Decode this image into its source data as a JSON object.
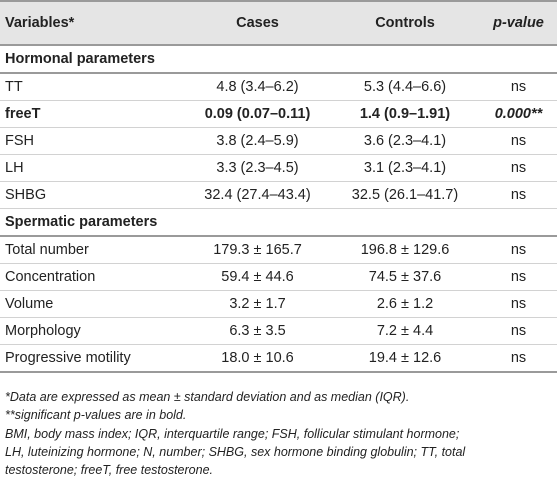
{
  "table": {
    "headers": [
      "Variables*",
      "Cases",
      "Controls",
      "p-value"
    ],
    "rows": [
      {
        "type": "section",
        "cells": [
          "Hormonal parameters",
          "",
          "",
          ""
        ]
      },
      {
        "type": "normal",
        "cells": [
          "TT",
          "4.8 (3.4–6.2)",
          "5.3 (4.4–6.6)",
          "ns"
        ]
      },
      {
        "type": "bold",
        "cells": [
          "freeT",
          "0.09 (0.07–0.11)",
          "1.4 (0.9–1.91)",
          "0.000**"
        ]
      },
      {
        "type": "normal",
        "cells": [
          "FSH",
          "3.8 (2.4–5.9)",
          "3.6 (2.3–4.1)",
          "ns"
        ]
      },
      {
        "type": "normal",
        "cells": [
          "LH",
          "3.3 (2.3–4.5)",
          "3.1 (2.3–4.1)",
          "ns"
        ]
      },
      {
        "type": "normal",
        "cells": [
          "SHBG",
          "32.4 (27.4–43.4)",
          "32.5 (26.1–41.7)",
          "ns"
        ]
      },
      {
        "type": "section",
        "cells": [
          "Spermatic parameters",
          "",
          "",
          ""
        ]
      },
      {
        "type": "normal",
        "cells": [
          "Total number",
          "179.3 ± 165.7",
          "196.8 ± 129.6",
          "ns"
        ]
      },
      {
        "type": "normal",
        "cells": [
          "Concentration",
          "59.4 ± 44.6",
          "74.5 ± 37.6",
          "ns"
        ]
      },
      {
        "type": "normal",
        "cells": [
          "Volume",
          "3.2 ± 1.7",
          "2.6 ± 1.2",
          "ns"
        ]
      },
      {
        "type": "normal",
        "cells": [
          "Morphology",
          "6.3 ± 3.5",
          "7.2 ± 4.4",
          "ns"
        ]
      },
      {
        "type": "last",
        "cells": [
          "Progressive motility",
          "18.0 ± 10.6",
          "19.4 ± 12.6",
          "ns"
        ]
      }
    ]
  },
  "footnotes": [
    "*Data are expressed as mean ± standard deviation and as median (IQR).",
    "**significant p-values are in bold.",
    "BMI, body mass index; IQR, interquartile range; FSH, follicular stimulant hormone;",
    "LH, luteinizing hormone; N, number; SHBG, sex hormone binding globulin; TT, total",
    "testosterone; freeT, free testosterone."
  ]
}
